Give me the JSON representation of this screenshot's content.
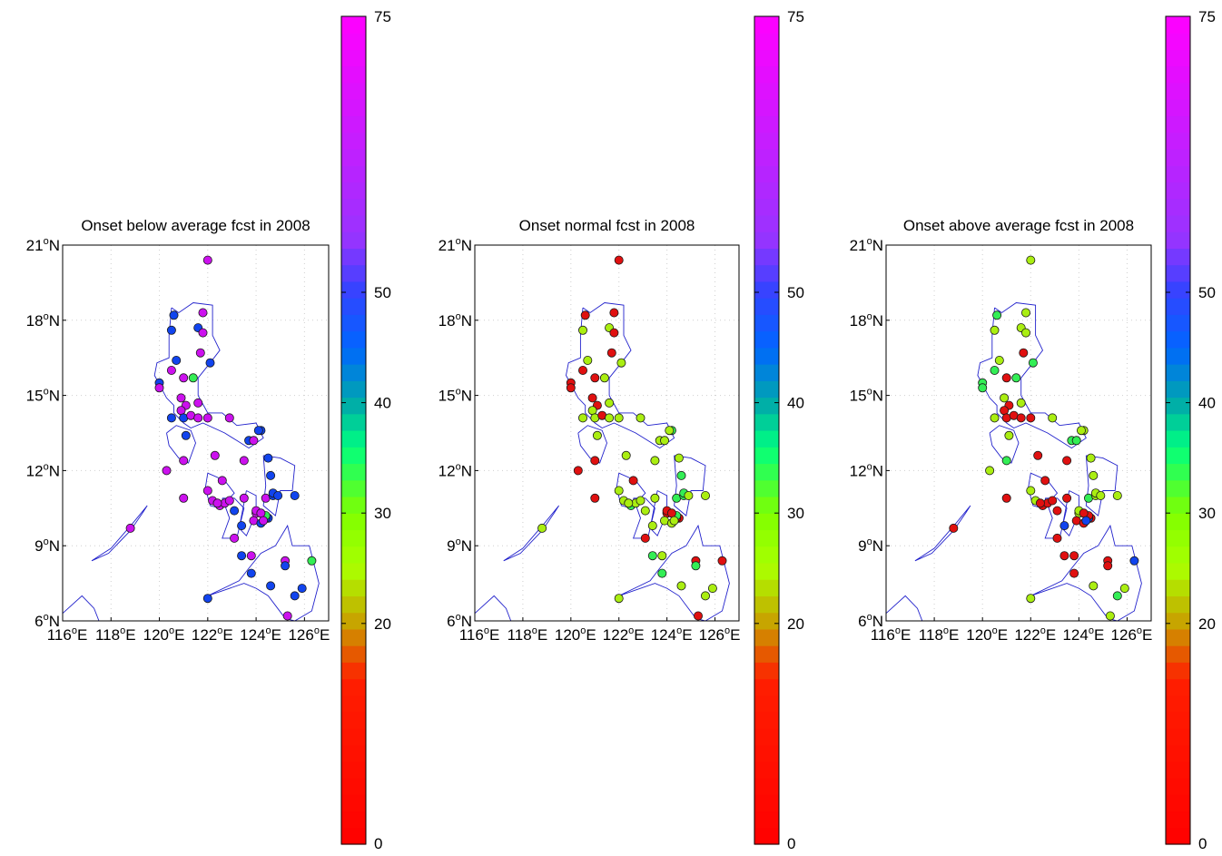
{
  "figure": {
    "panels": [
      {
        "title": "Onset below average fcst in 2008"
      },
      {
        "title": "Onset normal fcst in 2008"
      },
      {
        "title": "Onset above average fcst in 2008"
      }
    ],
    "lat_ticks": [
      {
        "value": 6,
        "deg": "6",
        "dir": "N"
      },
      {
        "value": 9,
        "deg": "9",
        "dir": "N"
      },
      {
        "value": 12,
        "deg": "12",
        "dir": "N"
      },
      {
        "value": 15,
        "deg": "15",
        "dir": "N"
      },
      {
        "value": 18,
        "deg": "18",
        "dir": "N"
      },
      {
        "value": 21,
        "deg": "21",
        "dir": "N"
      }
    ],
    "lon_ticks": [
      {
        "value": 116,
        "deg": "116",
        "dir": "E"
      },
      {
        "value": 118,
        "deg": "118",
        "dir": "E"
      },
      {
        "value": 120,
        "deg": "120",
        "dir": "E"
      },
      {
        "value": 122,
        "deg": "122",
        "dir": "E"
      },
      {
        "value": 124,
        "deg": "124",
        "dir": "E"
      },
      {
        "value": 126,
        "deg": "126",
        "dir": "E"
      }
    ],
    "colorbar": {
      "ticks": [
        0,
        20,
        30,
        40,
        50,
        75
      ],
      "tick_labels": [
        "0",
        "20",
        "30",
        "40",
        "50",
        "75"
      ],
      "color_stops": [
        {
          "value": 0,
          "color": "#ff0000"
        },
        {
          "value": 15,
          "color": "#ff1e00"
        },
        {
          "value": 20,
          "color": "#c8a000"
        },
        {
          "value": 25,
          "color": "#aaff00"
        },
        {
          "value": 30,
          "color": "#80ff00"
        },
        {
          "value": 36,
          "color": "#00ff80"
        },
        {
          "value": 40,
          "color": "#00aaaa"
        },
        {
          "value": 45,
          "color": "#0066ff"
        },
        {
          "value": 50,
          "color": "#3344ff"
        },
        {
          "value": 55,
          "color": "#9933ff"
        },
        {
          "value": 75,
          "color": "#ff00ff"
        }
      ]
    }
  },
  "chart_data": {
    "type": "scatter",
    "map_extent": {
      "lon": [
        116,
        127
      ],
      "lat": [
        6,
        21
      ]
    },
    "colorbar_range": [
      0,
      75
    ],
    "colors": {
      "red": "#e01010",
      "yellow_green": "#aaee11",
      "green": "#33ee55",
      "blue": "#1144ee",
      "magenta": "#cc11ee",
      "coastline": "#2222cc"
    },
    "stations": [
      [
        122.0,
        20.4
      ],
      [
        121.8,
        18.3
      ],
      [
        120.6,
        18.2
      ],
      [
        120.5,
        17.6
      ],
      [
        121.6,
        17.7
      ],
      [
        121.8,
        17.5
      ],
      [
        121.7,
        16.7
      ],
      [
        122.1,
        16.3
      ],
      [
        120.7,
        16.4
      ],
      [
        121.4,
        15.7
      ],
      [
        120.5,
        16.0
      ],
      [
        121.0,
        15.7
      ],
      [
        120.0,
        15.5
      ],
      [
        120.0,
        15.3
      ],
      [
        120.9,
        14.9
      ],
      [
        121.1,
        14.6
      ],
      [
        121.6,
        14.7
      ],
      [
        120.9,
        14.4
      ],
      [
        121.0,
        14.1
      ],
      [
        121.3,
        14.2
      ],
      [
        121.6,
        14.1
      ],
      [
        120.5,
        14.1
      ],
      [
        122.0,
        14.1
      ],
      [
        122.9,
        14.1
      ],
      [
        121.1,
        13.4
      ],
      [
        123.7,
        13.2
      ],
      [
        123.9,
        13.2
      ],
      [
        124.2,
        13.6
      ],
      [
        124.1,
        13.6
      ],
      [
        122.3,
        12.6
      ],
      [
        123.5,
        12.4
      ],
      [
        124.5,
        12.5
      ],
      [
        120.3,
        12.0
      ],
      [
        121.0,
        12.4
      ],
      [
        124.6,
        11.8
      ],
      [
        122.6,
        11.6
      ],
      [
        121.0,
        10.9
      ],
      [
        122.0,
        11.2
      ],
      [
        122.2,
        10.8
      ],
      [
        122.5,
        10.6
      ],
      [
        122.7,
        10.7
      ],
      [
        122.4,
        10.7
      ],
      [
        122.9,
        10.8
      ],
      [
        123.5,
        10.9
      ],
      [
        124.4,
        10.9
      ],
      [
        124.7,
        11.0
      ],
      [
        124.7,
        11.1
      ],
      [
        124.9,
        11.0
      ],
      [
        125.6,
        11.0
      ],
      [
        124.0,
        10.3
      ],
      [
        124.0,
        10.4
      ],
      [
        123.1,
        10.4
      ],
      [
        123.9,
        10.0
      ],
      [
        124.2,
        9.9
      ],
      [
        124.5,
        10.1
      ],
      [
        124.4,
        10.1
      ],
      [
        124.4,
        10.2
      ],
      [
        124.2,
        10.3
      ],
      [
        124.3,
        10.0
      ],
      [
        123.4,
        9.8
      ],
      [
        123.1,
        9.3
      ],
      [
        118.8,
        9.7
      ],
      [
        123.4,
        8.6
      ],
      [
        123.8,
        8.6
      ],
      [
        125.2,
        8.4
      ],
      [
        126.3,
        8.4
      ],
      [
        123.8,
        7.9
      ],
      [
        124.6,
        7.4
      ],
      [
        125.2,
        8.2
      ],
      [
        125.6,
        7.0
      ],
      [
        125.9,
        7.3
      ],
      [
        122.0,
        6.9
      ],
      [
        125.3,
        6.2
      ]
    ],
    "panels": [
      {
        "title": "Onset below average fcst in 2008",
        "station_colors": [
          "magenta",
          "magenta",
          "blue",
          "blue",
          "blue",
          "magenta",
          "magenta",
          "blue",
          "blue",
          "green",
          "magenta",
          "magenta",
          "blue",
          "magenta",
          "magenta",
          "magenta",
          "magenta",
          "magenta",
          "blue",
          "magenta",
          "magenta",
          "blue",
          "magenta",
          "magenta",
          "blue",
          "blue",
          "magenta",
          "blue",
          "blue",
          "magenta",
          "magenta",
          "blue",
          "magenta",
          "magenta",
          "blue",
          "magenta",
          "magenta",
          "magenta",
          "magenta",
          "magenta",
          "magenta",
          "magenta",
          "magenta",
          "magenta",
          "magenta",
          "blue",
          "blue",
          "blue",
          "blue",
          "magenta",
          "magenta",
          "blue",
          "magenta",
          "blue",
          "blue",
          "blue",
          "green",
          "magenta",
          "magenta",
          "blue",
          "magenta",
          "magenta",
          "blue",
          "magenta",
          "magenta",
          "green",
          "blue",
          "blue",
          "blue",
          "blue",
          "blue",
          "blue",
          "magenta"
        ]
      },
      {
        "title": "Onset normal fcst in 2008",
        "station_colors": [
          "red",
          "red",
          "red",
          "yellow_green",
          "yellow_green",
          "red",
          "red",
          "yellow_green",
          "yellow_green",
          "yellow_green",
          "red",
          "red",
          "red",
          "red",
          "red",
          "red",
          "yellow_green",
          "yellow_green",
          "yellow_green",
          "red",
          "yellow_green",
          "yellow_green",
          "yellow_green",
          "yellow_green",
          "yellow_green",
          "yellow_green",
          "yellow_green",
          "green",
          "yellow_green",
          "yellow_green",
          "yellow_green",
          "yellow_green",
          "red",
          "red",
          "green",
          "red",
          "red",
          "yellow_green",
          "yellow_green",
          "green",
          "yellow_green",
          "yellow_green",
          "yellow_green",
          "yellow_green",
          "green",
          "green",
          "green",
          "yellow_green",
          "yellow_green",
          "red",
          "red",
          "yellow_green",
          "yellow_green",
          "yellow_green",
          "red",
          "red",
          "green",
          "red",
          "yellow_green",
          "yellow_green",
          "red",
          "yellow_green",
          "green",
          "yellow_green",
          "red",
          "red",
          "green",
          "yellow_green",
          "green",
          "yellow_green",
          "yellow_green",
          "yellow_green",
          "red"
        ]
      },
      {
        "title": "Onset above average fcst in 2008",
        "station_colors": [
          "yellow_green",
          "yellow_green",
          "green",
          "yellow_green",
          "yellow_green",
          "yellow_green",
          "red",
          "green",
          "yellow_green",
          "green",
          "green",
          "red",
          "green",
          "green",
          "yellow_green",
          "red",
          "yellow_green",
          "red",
          "red",
          "red",
          "red",
          "yellow_green",
          "red",
          "yellow_green",
          "yellow_green",
          "green",
          "green",
          "yellow_green",
          "yellow_green",
          "red",
          "red",
          "yellow_green",
          "yellow_green",
          "green",
          "yellow_green",
          "red",
          "red",
          "yellow_green",
          "yellow_green",
          "red",
          "red",
          "red",
          "red",
          "red",
          "green",
          "yellow_green",
          "yellow_green",
          "yellow_green",
          "yellow_green",
          "yellow_green",
          "yellow_green",
          "red",
          "red",
          "red",
          "red",
          "blue",
          "red",
          "red",
          "blue",
          "blue",
          "red",
          "red",
          "red",
          "red",
          "red",
          "blue",
          "red",
          "yellow_green",
          "red",
          "green",
          "yellow_green",
          "yellow_green",
          "yellow_green"
        ]
      }
    ]
  }
}
